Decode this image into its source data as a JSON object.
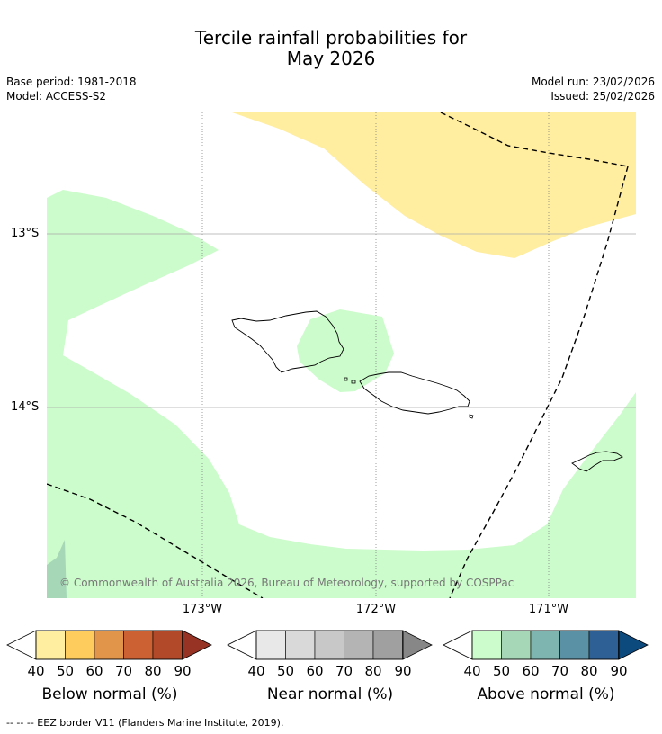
{
  "title_line1": "Tercile rainfall probabilities for",
  "title_line2": "May 2026",
  "base_period": "Base period: 1981-2018",
  "model": "Model: ACCESS-S2",
  "model_run": "Model run: 23/02/2026",
  "issued": "Issued: 25/02/2026",
  "latitude_labels": [
    "13°S",
    "14°S"
  ],
  "longitude_labels": [
    "173°W",
    "172°W",
    "171°W"
  ],
  "copyright": "© Commonwealth of Australia 2026, Bureau of Meteorology, supported by COSPPac",
  "colorbars": {
    "below": {
      "label": "Below normal (%)",
      "ticks": [
        "40",
        "50",
        "60",
        "70",
        "80",
        "90"
      ],
      "colors": [
        "#ffeda0",
        "#fecc5c",
        "#e0954a",
        "#cc6133",
        "#b24a2a",
        "#973325"
      ]
    },
    "near": {
      "label": "Near normal (%)",
      "ticks": [
        "40",
        "50",
        "60",
        "70",
        "80",
        "90"
      ],
      "colors": [
        "#e8e8e8",
        "#d9d9d9",
        "#c8c8c8",
        "#b4b4b4",
        "#a0a0a0",
        "#878787"
      ]
    },
    "above": {
      "label": "Above normal (%)",
      "ticks": [
        "40",
        "50",
        "60",
        "70",
        "80",
        "90"
      ],
      "colors": [
        "#ccfccb",
        "#a6d8b8",
        "#7fb5b0",
        "#5b91a5",
        "#2e6096",
        "#0c4a7e"
      ]
    }
  },
  "footnote": "--  --  -- EEZ border V11 (Flanders Marine Institute, 2019).",
  "map_regions": [
    {
      "category": "below",
      "probability_range": "40-50"
    },
    {
      "category": "above",
      "probability_range": "40-50"
    },
    {
      "category": "above",
      "probability_range": "50-60"
    }
  ]
}
